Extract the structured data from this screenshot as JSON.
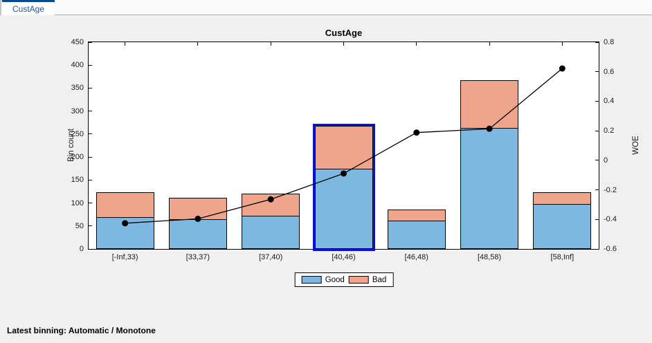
{
  "tab": {
    "label": "CustAge"
  },
  "status": {
    "text": "Latest binning: Automatic / Monotone"
  },
  "legend": {
    "good": "Good",
    "bad": "Bad"
  },
  "colors": {
    "good_bar": "#7db8e0",
    "bad_bar": "#efa58b",
    "selection": "#0a10e8",
    "woe_line": "#000000",
    "tab_accent": "#0c4a8c",
    "tab_text": "#1c4f9c",
    "background": "#f0f0f0",
    "plot_background": "#ffffff"
  },
  "chart_data": {
    "type": "bar",
    "subtype": "stacked-bars-with-line-overlay",
    "title": "CustAge",
    "ylabel_left": "Bin count",
    "ylabel_right": "WOE",
    "categories": [
      "[-Inf,33)",
      "[33,37)",
      "[37,40)",
      "[40,46)",
      "[46,48)",
      "[48,58)",
      "[58,Inf]"
    ],
    "series": [
      {
        "name": "Good",
        "color": "#7db8e0",
        "values": [
          70,
          64,
          73,
          174,
          61,
          263,
          98
        ]
      },
      {
        "name": "Bad",
        "color": "#efa58b",
        "values": [
          53,
          47,
          47,
          94,
          25,
          105,
          26
        ]
      }
    ],
    "line_series": {
      "name": "WOE",
      "axis": "right",
      "color": "#000000",
      "values": [
        -0.426,
        -0.396,
        -0.264,
        -0.089,
        0.188,
        0.214,
        0.622
      ]
    },
    "left_axis": {
      "min": 0,
      "max": 450,
      "ticks": [
        "0",
        "50",
        "100",
        "150",
        "200",
        "250",
        "300",
        "350",
        "400",
        "450"
      ]
    },
    "right_axis": {
      "min": -0.6,
      "max": 0.8,
      "ticks": [
        "-0.6",
        "-0.4",
        "-0.2",
        "0",
        "0.2",
        "0.4",
        "0.6",
        "0.8"
      ]
    },
    "selected_bin_index": 3,
    "grid": false,
    "legend_position": "below"
  }
}
